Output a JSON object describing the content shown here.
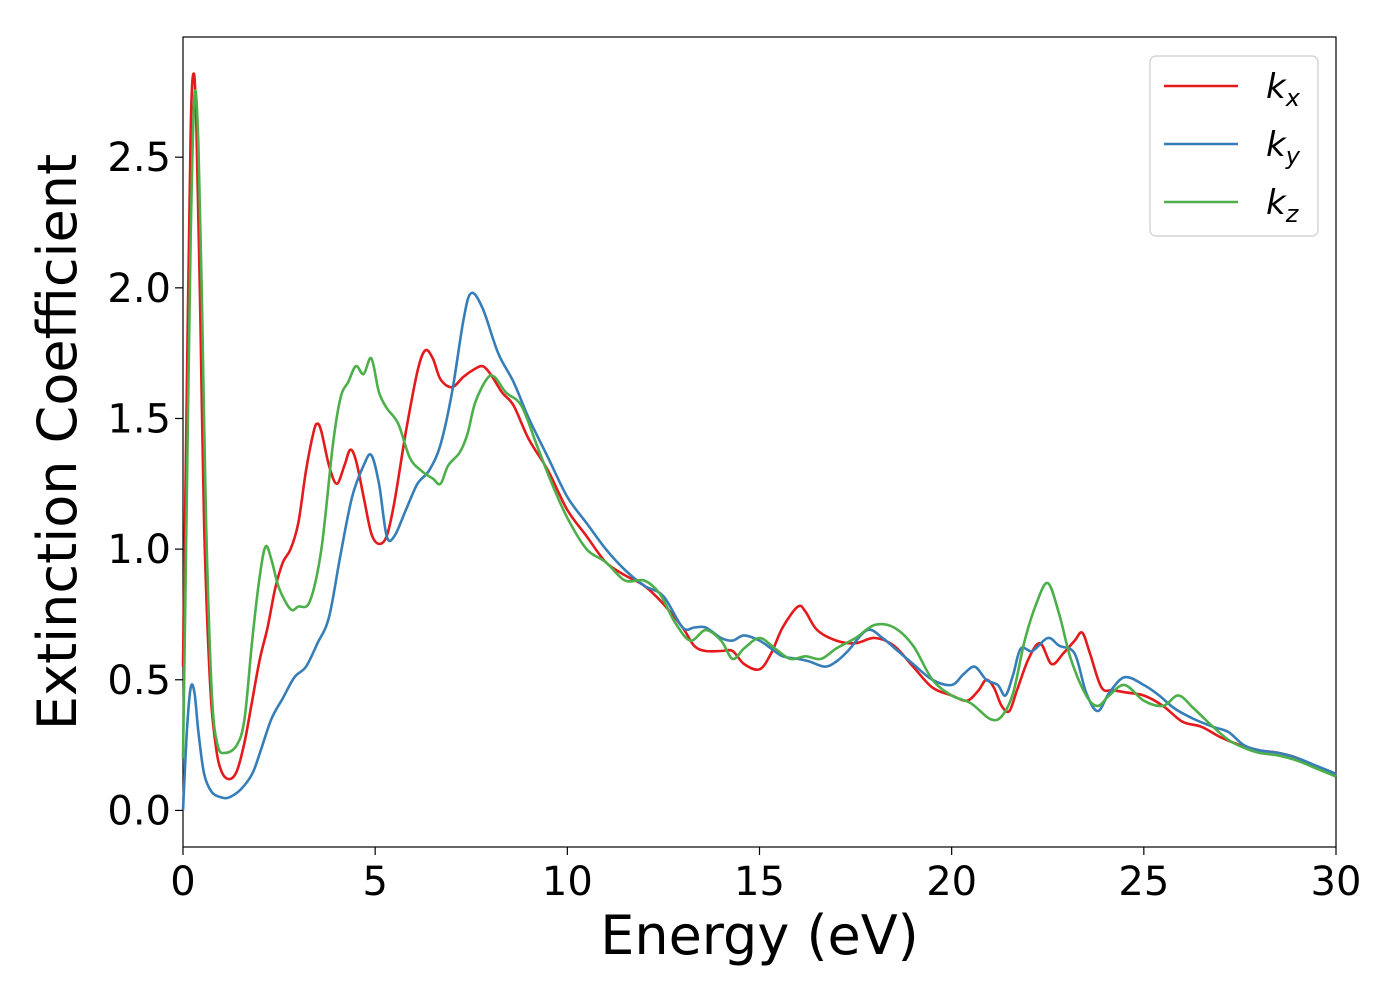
{
  "chart_data": {
    "type": "line",
    "xlabel": "Energy (eV)",
    "ylabel": "Extinction Coefficient",
    "xlim": [
      0,
      30
    ],
    "ylim": [
      -0.14,
      2.96
    ],
    "xticks": [
      0,
      5,
      10,
      15,
      20,
      25,
      30
    ],
    "xtick_labels": [
      "0",
      "5",
      "10",
      "15",
      "20",
      "25",
      "30"
    ],
    "yticks": [
      0.0,
      0.5,
      1.0,
      1.5,
      2.0,
      2.5
    ],
    "ytick_labels": [
      "0.0",
      "0.5",
      "1.0",
      "1.5",
      "2.0",
      "2.5"
    ],
    "grid": false,
    "legend_position": "top-right",
    "series": [
      {
        "name": "k",
        "subscript": "x",
        "color": "#e41a1c",
        "points": [
          [
            0,
            0.55
          ],
          [
            0.1,
            1.6
          ],
          [
            0.2,
            2.6
          ],
          [
            0.28,
            2.82
          ],
          [
            0.35,
            2.6
          ],
          [
            0.45,
            1.9
          ],
          [
            0.55,
            1.1
          ],
          [
            0.7,
            0.5
          ],
          [
            0.85,
            0.25
          ],
          [
            1.0,
            0.15
          ],
          [
            1.2,
            0.12
          ],
          [
            1.4,
            0.15
          ],
          [
            1.6,
            0.26
          ],
          [
            1.8,
            0.42
          ],
          [
            2.0,
            0.58
          ],
          [
            2.2,
            0.7
          ],
          [
            2.4,
            0.85
          ],
          [
            2.6,
            0.95
          ],
          [
            2.8,
            1.0
          ],
          [
            3.0,
            1.1
          ],
          [
            3.2,
            1.3
          ],
          [
            3.4,
            1.45
          ],
          [
            3.5,
            1.48
          ],
          [
            3.6,
            1.45
          ],
          [
            3.8,
            1.32
          ],
          [
            4.0,
            1.25
          ],
          [
            4.2,
            1.32
          ],
          [
            4.35,
            1.38
          ],
          [
            4.5,
            1.34
          ],
          [
            4.7,
            1.2
          ],
          [
            4.9,
            1.06
          ],
          [
            5.1,
            1.02
          ],
          [
            5.3,
            1.05
          ],
          [
            5.5,
            1.18
          ],
          [
            5.8,
            1.45
          ],
          [
            6.1,
            1.68
          ],
          [
            6.3,
            1.76
          ],
          [
            6.5,
            1.73
          ],
          [
            6.7,
            1.65
          ],
          [
            7.0,
            1.62
          ],
          [
            7.3,
            1.66
          ],
          [
            7.6,
            1.69
          ],
          [
            7.8,
            1.7
          ],
          [
            8.0,
            1.67
          ],
          [
            8.3,
            1.6
          ],
          [
            8.6,
            1.55
          ],
          [
            9.0,
            1.42
          ],
          [
            9.5,
            1.3
          ],
          [
            10.0,
            1.15
          ],
          [
            10.5,
            1.05
          ],
          [
            11.0,
            0.95
          ],
          [
            11.5,
            0.9
          ],
          [
            12.0,
            0.86
          ],
          [
            12.5,
            0.79
          ],
          [
            13.0,
            0.7
          ],
          [
            13.3,
            0.63
          ],
          [
            13.6,
            0.61
          ],
          [
            14.0,
            0.61
          ],
          [
            14.3,
            0.61
          ],
          [
            14.6,
            0.56
          ],
          [
            15.0,
            0.54
          ],
          [
            15.3,
            0.6
          ],
          [
            15.6,
            0.7
          ],
          [
            16.0,
            0.78
          ],
          [
            16.2,
            0.76
          ],
          [
            16.5,
            0.69
          ],
          [
            17.0,
            0.65
          ],
          [
            17.5,
            0.64
          ],
          [
            18.0,
            0.66
          ],
          [
            18.5,
            0.63
          ],
          [
            19.0,
            0.55
          ],
          [
            19.5,
            0.47
          ],
          [
            20.0,
            0.44
          ],
          [
            20.4,
            0.42
          ],
          [
            20.7,
            0.46
          ],
          [
            20.9,
            0.5
          ],
          [
            21.1,
            0.47
          ],
          [
            21.3,
            0.4
          ],
          [
            21.5,
            0.38
          ],
          [
            21.7,
            0.46
          ],
          [
            22.0,
            0.58
          ],
          [
            22.3,
            0.64
          ],
          [
            22.6,
            0.56
          ],
          [
            22.9,
            0.6
          ],
          [
            23.2,
            0.65
          ],
          [
            23.4,
            0.68
          ],
          [
            23.6,
            0.6
          ],
          [
            23.9,
            0.47
          ],
          [
            24.2,
            0.46
          ],
          [
            24.6,
            0.45
          ],
          [
            25.0,
            0.44
          ],
          [
            25.5,
            0.4
          ],
          [
            26.0,
            0.34
          ],
          [
            26.5,
            0.32
          ],
          [
            27.0,
            0.28
          ],
          [
            27.5,
            0.25
          ],
          [
            28.0,
            0.23
          ],
          [
            28.5,
            0.22
          ],
          [
            29.0,
            0.2
          ],
          [
            29.5,
            0.16
          ],
          [
            30.0,
            0.14
          ]
        ]
      },
      {
        "name": "k",
        "subscript": "y",
        "color": "#377eb8",
        "points": [
          [
            0,
            0.0
          ],
          [
            0.1,
            0.3
          ],
          [
            0.2,
            0.47
          ],
          [
            0.3,
            0.45
          ],
          [
            0.4,
            0.3
          ],
          [
            0.55,
            0.14
          ],
          [
            0.75,
            0.07
          ],
          [
            1.0,
            0.05
          ],
          [
            1.2,
            0.05
          ],
          [
            1.5,
            0.08
          ],
          [
            1.8,
            0.14
          ],
          [
            2.0,
            0.22
          ],
          [
            2.3,
            0.35
          ],
          [
            2.6,
            0.43
          ],
          [
            2.9,
            0.51
          ],
          [
            3.2,
            0.55
          ],
          [
            3.5,
            0.64
          ],
          [
            3.8,
            0.74
          ],
          [
            4.1,
            0.98
          ],
          [
            4.4,
            1.2
          ],
          [
            4.7,
            1.32
          ],
          [
            4.9,
            1.36
          ],
          [
            5.1,
            1.25
          ],
          [
            5.3,
            1.05
          ],
          [
            5.5,
            1.05
          ],
          [
            5.8,
            1.15
          ],
          [
            6.1,
            1.25
          ],
          [
            6.4,
            1.3
          ],
          [
            6.7,
            1.4
          ],
          [
            7.0,
            1.6
          ],
          [
            7.3,
            1.88
          ],
          [
            7.5,
            1.98
          ],
          [
            7.8,
            1.92
          ],
          [
            8.2,
            1.75
          ],
          [
            8.6,
            1.64
          ],
          [
            9.0,
            1.5
          ],
          [
            9.5,
            1.35
          ],
          [
            10.0,
            1.2
          ],
          [
            10.5,
            1.1
          ],
          [
            11.0,
            1.0
          ],
          [
            11.5,
            0.92
          ],
          [
            12.0,
            0.86
          ],
          [
            12.5,
            0.82
          ],
          [
            13.0,
            0.7
          ],
          [
            13.3,
            0.7
          ],
          [
            13.6,
            0.7
          ],
          [
            14.0,
            0.66
          ],
          [
            14.3,
            0.65
          ],
          [
            14.6,
            0.67
          ],
          [
            15.0,
            0.65
          ],
          [
            15.3,
            0.62
          ],
          [
            15.6,
            0.59
          ],
          [
            16.0,
            0.58
          ],
          [
            16.3,
            0.57
          ],
          [
            16.7,
            0.55
          ],
          [
            17.0,
            0.57
          ],
          [
            17.3,
            0.61
          ],
          [
            17.8,
            0.69
          ],
          [
            18.2,
            0.66
          ],
          [
            18.6,
            0.61
          ],
          [
            19.0,
            0.56
          ],
          [
            19.5,
            0.5
          ],
          [
            20.0,
            0.48
          ],
          [
            20.3,
            0.52
          ],
          [
            20.6,
            0.55
          ],
          [
            20.9,
            0.5
          ],
          [
            21.2,
            0.48
          ],
          [
            21.4,
            0.44
          ],
          [
            21.6,
            0.52
          ],
          [
            21.8,
            0.62
          ],
          [
            22.1,
            0.61
          ],
          [
            22.5,
            0.66
          ],
          [
            22.8,
            0.63
          ],
          [
            23.2,
            0.6
          ],
          [
            23.5,
            0.45
          ],
          [
            23.8,
            0.38
          ],
          [
            24.1,
            0.45
          ],
          [
            24.5,
            0.51
          ],
          [
            25.0,
            0.48
          ],
          [
            25.4,
            0.44
          ],
          [
            25.8,
            0.39
          ],
          [
            26.3,
            0.35
          ],
          [
            26.8,
            0.32
          ],
          [
            27.2,
            0.3
          ],
          [
            27.6,
            0.25
          ],
          [
            28.0,
            0.23
          ],
          [
            28.5,
            0.22
          ],
          [
            29.0,
            0.2
          ],
          [
            29.5,
            0.17
          ],
          [
            30.0,
            0.14
          ]
        ]
      },
      {
        "name": "k",
        "subscript": "z",
        "color": "#4daf4a",
        "points": [
          [
            0,
            0.2
          ],
          [
            0.1,
            1.2
          ],
          [
            0.2,
            2.2
          ],
          [
            0.3,
            2.74
          ],
          [
            0.4,
            2.55
          ],
          [
            0.5,
            1.9
          ],
          [
            0.6,
            1.1
          ],
          [
            0.75,
            0.45
          ],
          [
            0.9,
            0.25
          ],
          [
            1.1,
            0.22
          ],
          [
            1.4,
            0.25
          ],
          [
            1.6,
            0.35
          ],
          [
            1.8,
            0.65
          ],
          [
            2.0,
            0.9
          ],
          [
            2.15,
            1.01
          ],
          [
            2.3,
            0.96
          ],
          [
            2.5,
            0.85
          ],
          [
            2.8,
            0.77
          ],
          [
            3.0,
            0.78
          ],
          [
            3.3,
            0.8
          ],
          [
            3.6,
            1.0
          ],
          [
            3.9,
            1.4
          ],
          [
            4.1,
            1.58
          ],
          [
            4.3,
            1.64
          ],
          [
            4.5,
            1.7
          ],
          [
            4.7,
            1.67
          ],
          [
            4.9,
            1.73
          ],
          [
            5.1,
            1.6
          ],
          [
            5.3,
            1.54
          ],
          [
            5.6,
            1.48
          ],
          [
            5.9,
            1.35
          ],
          [
            6.2,
            1.3
          ],
          [
            6.5,
            1.27
          ],
          [
            6.7,
            1.25
          ],
          [
            6.9,
            1.32
          ],
          [
            7.2,
            1.37
          ],
          [
            7.4,
            1.44
          ],
          [
            7.6,
            1.56
          ],
          [
            7.9,
            1.65
          ],
          [
            8.1,
            1.66
          ],
          [
            8.4,
            1.6
          ],
          [
            8.8,
            1.55
          ],
          [
            9.2,
            1.4
          ],
          [
            9.6,
            1.25
          ],
          [
            10.0,
            1.12
          ],
          [
            10.5,
            1.0
          ],
          [
            11.0,
            0.95
          ],
          [
            11.5,
            0.88
          ],
          [
            12.0,
            0.88
          ],
          [
            12.4,
            0.83
          ],
          [
            12.8,
            0.72
          ],
          [
            13.2,
            0.65
          ],
          [
            13.6,
            0.69
          ],
          [
            14.0,
            0.65
          ],
          [
            14.3,
            0.58
          ],
          [
            14.6,
            0.62
          ],
          [
            15.0,
            0.66
          ],
          [
            15.4,
            0.62
          ],
          [
            15.8,
            0.58
          ],
          [
            16.2,
            0.59
          ],
          [
            16.6,
            0.58
          ],
          [
            17.0,
            0.62
          ],
          [
            17.5,
            0.66
          ],
          [
            18.0,
            0.71
          ],
          [
            18.5,
            0.7
          ],
          [
            19.0,
            0.63
          ],
          [
            19.5,
            0.5
          ],
          [
            20.0,
            0.44
          ],
          [
            20.5,
            0.41
          ],
          [
            21.0,
            0.35
          ],
          [
            21.3,
            0.36
          ],
          [
            21.6,
            0.45
          ],
          [
            21.9,
            0.65
          ],
          [
            22.2,
            0.79
          ],
          [
            22.5,
            0.87
          ],
          [
            22.8,
            0.75
          ],
          [
            23.1,
            0.58
          ],
          [
            23.5,
            0.44
          ],
          [
            23.8,
            0.4
          ],
          [
            24.1,
            0.44
          ],
          [
            24.5,
            0.48
          ],
          [
            25.0,
            0.42
          ],
          [
            25.5,
            0.4
          ],
          [
            25.9,
            0.44
          ],
          [
            26.3,
            0.39
          ],
          [
            26.8,
            0.32
          ],
          [
            27.2,
            0.27
          ],
          [
            27.6,
            0.24
          ],
          [
            28.0,
            0.22
          ],
          [
            28.5,
            0.21
          ],
          [
            29.0,
            0.19
          ],
          [
            29.5,
            0.16
          ],
          [
            30.0,
            0.13
          ]
        ]
      }
    ]
  }
}
